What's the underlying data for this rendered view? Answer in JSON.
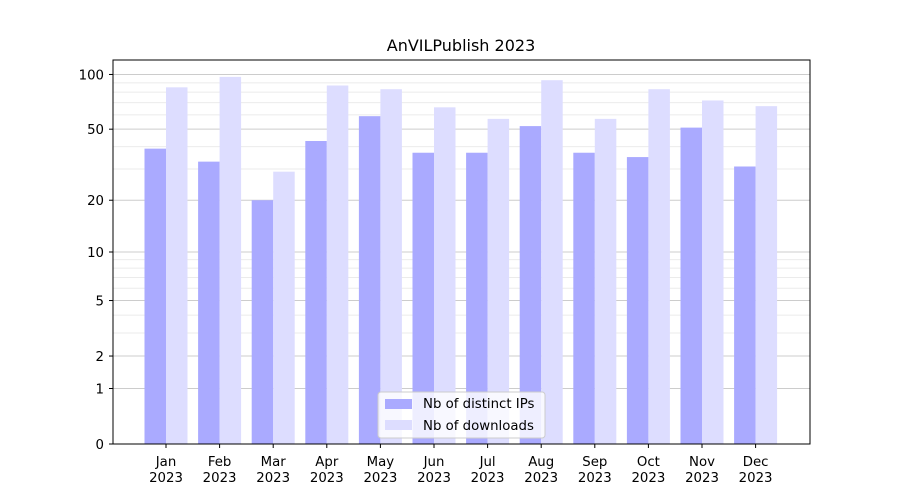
{
  "chart_data": {
    "type": "bar",
    "title": "AnVILPublish 2023",
    "xlabel": "",
    "ylabel": "",
    "y_scale": "log(1+y)",
    "ylim": [
      0,
      120
    ],
    "y_ticks": [
      0,
      1,
      2,
      5,
      10,
      20,
      50,
      100
    ],
    "y_minor_ticks": [
      3,
      4,
      6,
      7,
      8,
      9,
      30,
      40,
      60,
      70,
      80,
      90
    ],
    "grid": true,
    "legend_position": "bottom-center",
    "categories": [
      [
        "Jan",
        "2023"
      ],
      [
        "Feb",
        "2023"
      ],
      [
        "Mar",
        "2023"
      ],
      [
        "Apr",
        "2023"
      ],
      [
        "May",
        "2023"
      ],
      [
        "Jun",
        "2023"
      ],
      [
        "Jul",
        "2023"
      ],
      [
        "Aug",
        "2023"
      ],
      [
        "Sep",
        "2023"
      ],
      [
        "Oct",
        "2023"
      ],
      [
        "Nov",
        "2023"
      ],
      [
        "Dec",
        "2023"
      ]
    ],
    "series": [
      {
        "name": "Nb of distinct IPs",
        "color": "#aaaaff",
        "values": [
          39,
          33,
          20,
          43,
          59,
          37,
          37,
          52,
          37,
          35,
          51,
          31
        ]
      },
      {
        "name": "Nb of downloads",
        "color": "#ddddff",
        "values": [
          85,
          97,
          29,
          87,
          83,
          66,
          57,
          93,
          57,
          83,
          72,
          67
        ]
      }
    ]
  }
}
